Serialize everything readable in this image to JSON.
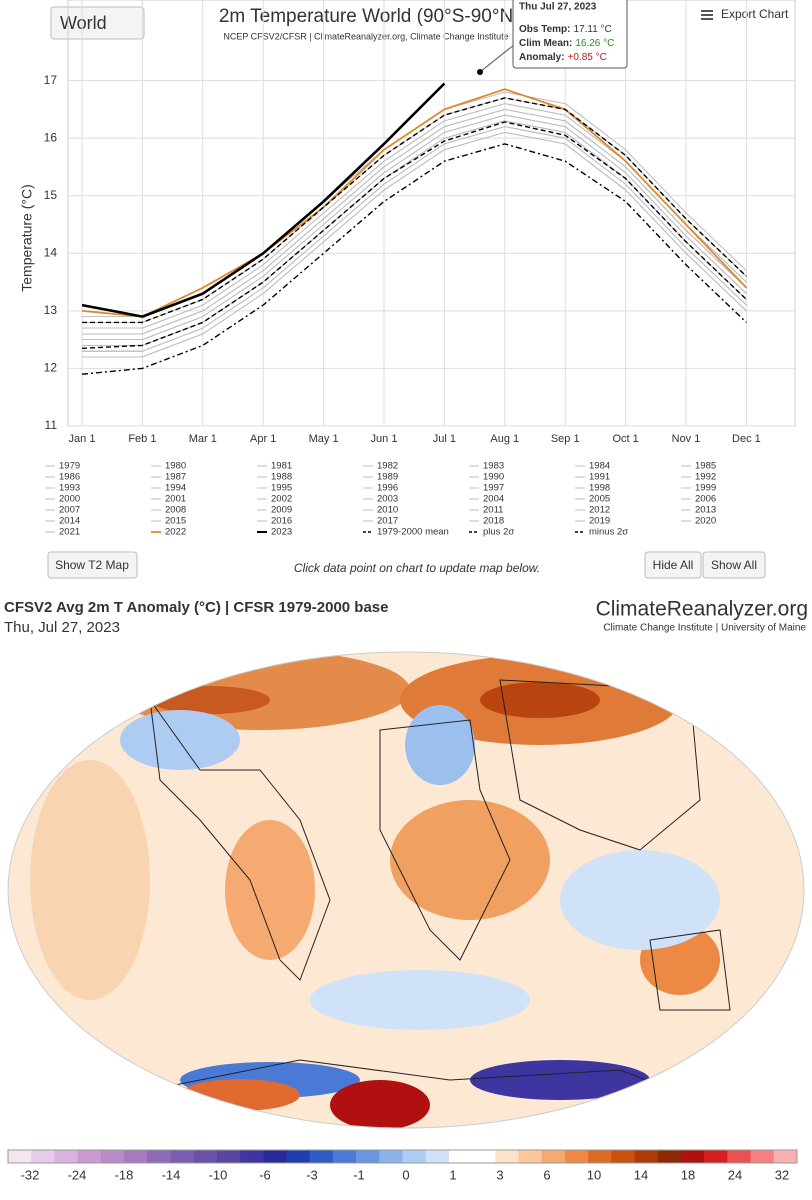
{
  "header": {
    "region": "World",
    "export": "Export Chart"
  },
  "chart_data": {
    "type": "line",
    "title": "2m Temperature World (90°S-90°N",
    "subtitle": "NCEP CFSV2/CFSR | ClimateReanalyzer.org, Climate Change Institute",
    "y_label": "Temperature (°C)",
    "categories": [
      "Jan 1",
      "Feb 1",
      "Mar 1",
      "Apr 1",
      "May 1",
      "Jun 1",
      "Jul 1",
      "Aug 1",
      "Sep 1",
      "Oct 1",
      "Nov 1",
      "Dec 1"
    ],
    "ylim": [
      11,
      18.4
    ],
    "yticks": [
      11,
      12,
      13,
      14,
      15,
      16,
      17
    ],
    "grid": true,
    "series": [
      {
        "name": "1979",
        "color": "#bdbdbd",
        "values": [
          12.2,
          12.2,
          12.6,
          13.3,
          14.2,
          15.1,
          15.8,
          16.1,
          15.9,
          15.1,
          14.0,
          13.0
        ]
      },
      {
        "name": "1980",
        "color": "#bdbdbd",
        "values": [
          12.3,
          12.3,
          12.7,
          13.4,
          14.3,
          15.2,
          15.9,
          16.2,
          16.0,
          15.2,
          14.1,
          13.1
        ]
      },
      {
        "name": "1981",
        "color": "#bdbdbd",
        "values": [
          12.3,
          12.3,
          12.7,
          13.4,
          14.3,
          15.2,
          15.9,
          16.2,
          16.0,
          15.2,
          14.1,
          13.1
        ]
      },
      {
        "name": "1982",
        "color": "#bdbdbd",
        "values": [
          12.2,
          12.2,
          12.6,
          13.3,
          14.2,
          15.1,
          15.8,
          16.1,
          15.9,
          15.1,
          14.0,
          13.0
        ]
      },
      {
        "name": "1983",
        "color": "#bdbdbd",
        "values": [
          12.4,
          12.4,
          12.8,
          13.5,
          14.4,
          15.3,
          16.0,
          16.3,
          16.1,
          15.3,
          14.2,
          13.2
        ]
      },
      {
        "name": "1984",
        "color": "#bdbdbd",
        "values": [
          12.2,
          12.2,
          12.6,
          13.3,
          14.2,
          15.1,
          15.8,
          16.1,
          15.9,
          15.1,
          14.0,
          13.0
        ]
      },
      {
        "name": "1985",
        "color": "#bdbdbd",
        "values": [
          12.2,
          12.2,
          12.6,
          13.3,
          14.2,
          15.1,
          15.8,
          16.1,
          15.9,
          15.1,
          14.0,
          13.0
        ]
      },
      {
        "name": "1986",
        "color": "#bdbdbd",
        "values": [
          12.3,
          12.3,
          12.7,
          13.4,
          14.3,
          15.2,
          15.9,
          16.2,
          16.0,
          15.2,
          14.1,
          13.1
        ]
      },
      {
        "name": "1987",
        "color": "#bdbdbd",
        "values": [
          12.4,
          12.4,
          12.8,
          13.5,
          14.4,
          15.3,
          16.0,
          16.3,
          16.1,
          15.3,
          14.2,
          13.2
        ]
      },
      {
        "name": "1988",
        "color": "#bdbdbd",
        "values": [
          12.4,
          12.4,
          12.8,
          13.5,
          14.4,
          15.3,
          16.0,
          16.3,
          16.1,
          15.3,
          14.2,
          13.2
        ]
      },
      {
        "name": "1989",
        "color": "#bdbdbd",
        "values": [
          12.3,
          12.3,
          12.7,
          13.4,
          14.3,
          15.2,
          15.9,
          16.2,
          16.0,
          15.2,
          14.1,
          13.1
        ]
      },
      {
        "name": "1990",
        "color": "#bdbdbd",
        "values": [
          12.4,
          12.4,
          12.8,
          13.5,
          14.4,
          15.3,
          16.0,
          16.3,
          16.1,
          15.3,
          14.2,
          13.2
        ]
      },
      {
        "name": "1991",
        "color": "#bdbdbd",
        "values": [
          12.4,
          12.4,
          12.8,
          13.5,
          14.4,
          15.3,
          16.0,
          16.3,
          16.1,
          15.3,
          14.2,
          13.2
        ]
      },
      {
        "name": "1992",
        "color": "#bdbdbd",
        "values": [
          12.2,
          12.2,
          12.6,
          13.3,
          14.2,
          15.1,
          15.8,
          16.1,
          15.9,
          15.1,
          14.0,
          13.0
        ]
      },
      {
        "name": "1993",
        "color": "#bdbdbd",
        "values": [
          12.3,
          12.3,
          12.7,
          13.4,
          14.3,
          15.2,
          15.9,
          16.2,
          16.0,
          15.2,
          14.1,
          13.1
        ]
      },
      {
        "name": "1994",
        "color": "#bdbdbd",
        "values": [
          12.4,
          12.4,
          12.8,
          13.5,
          14.4,
          15.3,
          16.0,
          16.3,
          16.1,
          15.3,
          14.2,
          13.2
        ]
      },
      {
        "name": "1995",
        "color": "#bdbdbd",
        "values": [
          12.5,
          12.5,
          12.9,
          13.6,
          14.5,
          15.4,
          16.1,
          16.4,
          16.2,
          15.4,
          14.3,
          13.3
        ]
      },
      {
        "name": "1996",
        "color": "#bdbdbd",
        "values": [
          12.4,
          12.4,
          12.8,
          13.5,
          14.4,
          15.3,
          16.0,
          16.3,
          16.1,
          15.3,
          14.2,
          13.2
        ]
      },
      {
        "name": "1997",
        "color": "#bdbdbd",
        "values": [
          12.5,
          12.5,
          12.9,
          13.6,
          14.5,
          15.4,
          16.1,
          16.4,
          16.2,
          15.4,
          14.3,
          13.3
        ]
      },
      {
        "name": "1998",
        "color": "#bdbdbd",
        "values": [
          12.6,
          12.6,
          13.0,
          13.7,
          14.6,
          15.5,
          16.2,
          16.5,
          16.3,
          15.5,
          14.4,
          13.4
        ]
      },
      {
        "name": "1999",
        "color": "#bdbdbd",
        "values": [
          12.4,
          12.4,
          12.8,
          13.5,
          14.4,
          15.3,
          16.0,
          16.3,
          16.1,
          15.3,
          14.2,
          13.2
        ]
      },
      {
        "name": "2000",
        "color": "#bdbdbd",
        "values": [
          12.4,
          12.4,
          12.8,
          13.5,
          14.4,
          15.3,
          16.0,
          16.3,
          16.1,
          15.3,
          14.2,
          13.2
        ]
      },
      {
        "name": "2001",
        "color": "#bdbdbd",
        "values": [
          12.5,
          12.5,
          12.9,
          13.6,
          14.5,
          15.4,
          16.1,
          16.4,
          16.2,
          15.4,
          14.3,
          13.3
        ]
      },
      {
        "name": "2002",
        "color": "#bdbdbd",
        "values": [
          12.6,
          12.6,
          13.0,
          13.7,
          14.6,
          15.5,
          16.2,
          16.5,
          16.3,
          15.5,
          14.4,
          13.4
        ]
      },
      {
        "name": "2003",
        "color": "#bdbdbd",
        "values": [
          12.6,
          12.6,
          13.0,
          13.7,
          14.6,
          15.5,
          16.2,
          16.5,
          16.3,
          15.5,
          14.4,
          13.4
        ]
      },
      {
        "name": "2004",
        "color": "#bdbdbd",
        "values": [
          12.5,
          12.5,
          12.9,
          13.6,
          14.5,
          15.4,
          16.1,
          16.4,
          16.2,
          15.4,
          14.3,
          13.3
        ]
      },
      {
        "name": "2005",
        "color": "#bdbdbd",
        "values": [
          12.6,
          12.6,
          13.0,
          13.7,
          14.6,
          15.5,
          16.2,
          16.5,
          16.3,
          15.5,
          14.4,
          13.4
        ]
      },
      {
        "name": "2006",
        "color": "#bdbdbd",
        "values": [
          12.6,
          12.6,
          13.0,
          13.7,
          14.6,
          15.5,
          16.2,
          16.5,
          16.3,
          15.5,
          14.4,
          13.4
        ]
      },
      {
        "name": "2007",
        "color": "#bdbdbd",
        "values": [
          12.6,
          12.6,
          13.0,
          13.7,
          14.6,
          15.5,
          16.2,
          16.5,
          16.3,
          15.5,
          14.4,
          13.4
        ]
      },
      {
        "name": "2008",
        "color": "#bdbdbd",
        "values": [
          12.5,
          12.5,
          12.9,
          13.6,
          14.5,
          15.4,
          16.1,
          16.4,
          16.2,
          15.4,
          14.3,
          13.3
        ]
      },
      {
        "name": "2009",
        "color": "#bdbdbd",
        "values": [
          12.6,
          12.6,
          13.0,
          13.7,
          14.6,
          15.5,
          16.2,
          16.5,
          16.3,
          15.5,
          14.4,
          13.4
        ]
      },
      {
        "name": "2010",
        "color": "#bdbdbd",
        "values": [
          12.7,
          12.7,
          13.1,
          13.8,
          14.7,
          15.6,
          16.3,
          16.6,
          16.4,
          15.6,
          14.5,
          13.5
        ]
      },
      {
        "name": "2011",
        "color": "#bdbdbd",
        "values": [
          12.6,
          12.6,
          13.0,
          13.7,
          14.6,
          15.5,
          16.2,
          16.5,
          16.3,
          15.5,
          14.4,
          13.4
        ]
      },
      {
        "name": "2012",
        "color": "#bdbdbd",
        "values": [
          12.7,
          12.7,
          13.1,
          13.8,
          14.7,
          15.6,
          16.3,
          16.6,
          16.4,
          15.6,
          14.5,
          13.5
        ]
      },
      {
        "name": "2013",
        "color": "#bdbdbd",
        "values": [
          12.7,
          12.7,
          13.1,
          13.8,
          14.7,
          15.6,
          16.3,
          16.6,
          16.4,
          15.6,
          14.5,
          13.5
        ]
      },
      {
        "name": "2014",
        "color": "#bdbdbd",
        "values": [
          12.7,
          12.7,
          13.1,
          13.8,
          14.7,
          15.6,
          16.3,
          16.6,
          16.4,
          15.6,
          14.5,
          13.5
        ]
      },
      {
        "name": "2015",
        "color": "#bdbdbd",
        "values": [
          12.8,
          12.8,
          13.2,
          13.9,
          14.8,
          15.7,
          16.4,
          16.7,
          16.5,
          15.7,
          14.6,
          13.6
        ]
      },
      {
        "name": "2016",
        "color": "#bdbdbd",
        "values": [
          12.9,
          12.9,
          13.3,
          14.0,
          14.9,
          15.8,
          16.5,
          16.8,
          16.6,
          15.8,
          14.7,
          13.7
        ]
      },
      {
        "name": "2017",
        "color": "#bdbdbd",
        "values": [
          12.8,
          12.8,
          13.2,
          13.9,
          14.8,
          15.7,
          16.4,
          16.7,
          16.5,
          15.7,
          14.6,
          13.6
        ]
      },
      {
        "name": "2018",
        "color": "#bdbdbd",
        "values": [
          12.8,
          12.8,
          13.2,
          13.9,
          14.8,
          15.7,
          16.4,
          16.7,
          16.5,
          15.7,
          14.6,
          13.6
        ]
      },
      {
        "name": "2019",
        "color": "#bdbdbd",
        "values": [
          12.9,
          12.9,
          13.3,
          14.0,
          14.9,
          15.8,
          16.5,
          16.8,
          16.6,
          15.8,
          14.7,
          13.7
        ]
      },
      {
        "name": "2020",
        "color": "#bdbdbd",
        "values": [
          12.9,
          12.9,
          13.3,
          14.0,
          14.9,
          15.8,
          16.5,
          16.8,
          16.6,
          15.8,
          14.7,
          13.7
        ]
      },
      {
        "name": "2021",
        "color": "#bdbdbd",
        "values": [
          12.8,
          12.8,
          13.2,
          13.9,
          14.8,
          15.7,
          16.4,
          16.7,
          16.5,
          15.7,
          14.6,
          13.6
        ]
      },
      {
        "name": "2022",
        "color": "#e0892a",
        "width": 1.8,
        "values": [
          13.0,
          12.9,
          13.4,
          14.0,
          14.8,
          15.8,
          16.5,
          16.85,
          16.5,
          15.6,
          14.5,
          13.4
        ]
      },
      {
        "name": "2023",
        "color": "#000000",
        "width": 2.6,
        "values": [
          13.1,
          12.9,
          13.3,
          14.0,
          14.9,
          15.9,
          16.95,
          null,
          null,
          null,
          null,
          null
        ]
      },
      {
        "name": "1979-2000 mean",
        "color": "#000000",
        "width": 1.4,
        "dash": "dashed",
        "values": [
          12.35,
          12.4,
          12.8,
          13.5,
          14.4,
          15.3,
          15.95,
          16.28,
          16.05,
          15.3,
          14.2,
          13.2
        ]
      },
      {
        "name": "plus 2σ",
        "color": "#000000",
        "width": 1.4,
        "dash": "dashed",
        "values": [
          12.8,
          12.8,
          13.2,
          13.9,
          14.8,
          15.7,
          16.4,
          16.7,
          16.5,
          15.7,
          14.6,
          13.6
        ]
      },
      {
        "name": "minus 2σ",
        "color": "#000000",
        "width": 1.4,
        "dash": "dashdot",
        "values": [
          11.9,
          12.0,
          12.4,
          13.1,
          14.0,
          14.9,
          15.6,
          15.9,
          15.6,
          14.9,
          13.8,
          12.8
        ]
      }
    ]
  },
  "tooltip": {
    "date": "Thu Jul 27, 2023",
    "lines": [
      {
        "label": "Obs Temp:",
        "value": "17.11 °C",
        "color": "#333333"
      },
      {
        "label": "Clim Mean:",
        "value": "16.26 °C",
        "color": "#2e8b2e"
      },
      {
        "label": "Anomaly:",
        "value": "+0.85 °C",
        "color": "#b22222"
      }
    ]
  },
  "controls": {
    "show_map": "Show T2 Map",
    "hint": "Click data point on chart to update map below.",
    "hide_all": "Hide All",
    "show_all": "Show All"
  },
  "map": {
    "title": "CFSV2 Avg 2m T Anomaly (°C) | CFSR 1979-2000 base",
    "date": "Thu, Jul 27, 2023",
    "logo": "ClimateReanalyzer.org",
    "credit": "Climate Change Institute | University of Maine",
    "colorbar": {
      "ticks": [
        -32,
        -24,
        -18,
        -14,
        -10,
        -6,
        -3,
        -1,
        0,
        1,
        3,
        6,
        10,
        14,
        18,
        24,
        32
      ],
      "colors": [
        "#f3e6f3",
        "#e6cce8",
        "#d9b3dd",
        "#cc99d1",
        "#b88ac7",
        "#a57bbd",
        "#8c6bb8",
        "#7a5fb0",
        "#6a52a8",
        "#5a46a0",
        "#3f35a0",
        "#2a2a9a",
        "#1e3fae",
        "#2f5cc4",
        "#4a7ad6",
        "#6a96e0",
        "#8cb2ea",
        "#aecbf2",
        "#cfe2f8",
        "#ffffff",
        "#ffffff",
        "#fde3c8",
        "#f9c89c",
        "#f4aa70",
        "#ec8a45",
        "#de6b22",
        "#c9500e",
        "#ad3b08",
        "#8f2904",
        "#b01010",
        "#d42020",
        "#ec5050",
        "#f48080",
        "#f8b0b0"
      ]
    }
  }
}
